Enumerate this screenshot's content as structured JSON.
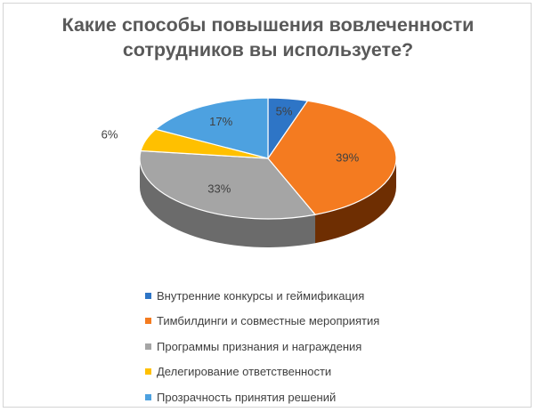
{
  "chart_data": {
    "type": "pie",
    "title_lines": [
      "Какие способы повышения вовлеченности",
      "сотрудников вы используете?"
    ],
    "categories": [
      "Внутренние конкурсы и геймификация",
      "Тимбилдинги и совместные мероприятия",
      "Программы признания и награждения",
      "Делегирование ответственности",
      "Прозрачность принятия решений"
    ],
    "values": [
      5,
      39,
      33,
      6,
      17
    ],
    "data_labels": [
      "5%",
      "39%",
      "33%",
      "6%",
      "17%"
    ],
    "colors": [
      "#2e75c6",
      "#f47b20",
      "#a5a5a5",
      "#ffc000",
      "#4da1e0"
    ],
    "side_colors": [
      "#1c4f8a",
      "#6e2e02",
      "#6b6b6b",
      "#a87e00",
      "#2a6b9c"
    ],
    "legend_position": "bottom",
    "style": "3d-pie"
  }
}
